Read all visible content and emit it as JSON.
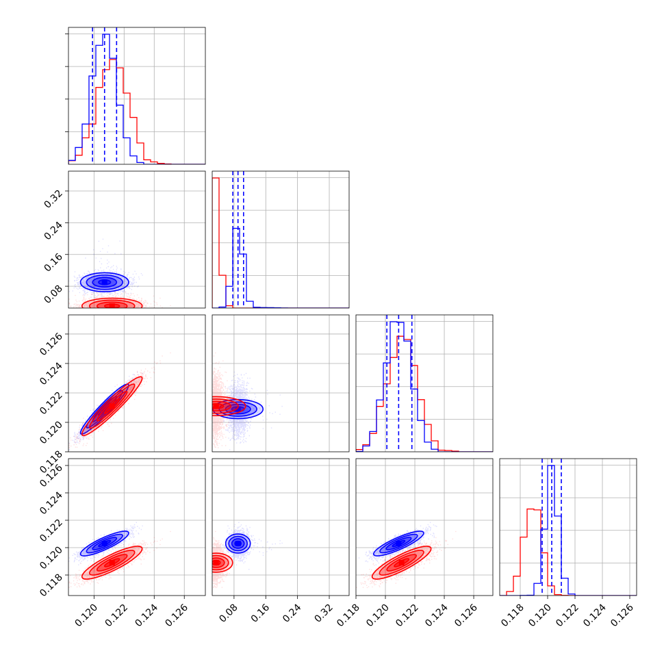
{
  "colors": {
    "series_a": "#0000ff",
    "series_b": "#ff0000",
    "grid": "#b0b0b0",
    "frame": "#000000"
  },
  "chart_data": {
    "type": "corner",
    "grid": true,
    "parameters": [
      {
        "range": [
          0.1183,
          0.1274
        ],
        "ticks": [
          "0.120",
          "0.122",
          "0.124",
          "0.126"
        ],
        "tick_values": [
          0.12,
          0.122,
          0.124,
          0.126
        ]
      },
      {
        "range": [
          0.025,
          0.37
        ],
        "ticks": [
          "0.08",
          "0.16",
          "0.24",
          "0.32"
        ],
        "tick_values": [
          0.08,
          0.16,
          0.24,
          0.32
        ]
      },
      {
        "range": [
          0.118,
          0.1273
        ],
        "ticks": [
          "0.118",
          "0.120",
          "0.122",
          "0.124",
          "0.126"
        ],
        "tick_values": [
          0.118,
          0.12,
          0.122,
          0.124,
          0.126
        ]
      },
      {
        "range": [
          0.1165,
          0.1265
        ],
        "ticks": [
          "0.118",
          "0.120",
          "0.122",
          "0.124",
          "0.126"
        ],
        "tick_values": [
          0.118,
          0.12,
          0.122,
          0.124,
          0.126
        ]
      }
    ],
    "series": [
      {
        "color": "#0000ff",
        "means": [
          0.1207,
          0.09,
          0.1209,
          0.1203
        ],
        "stds": [
          0.0008,
          0.012,
          0.00085,
          0.00045
        ],
        "quantiles": [
          [
            0.1199,
            0.1207,
            0.1215
          ],
          [
            0.077,
            0.09,
            0.104
          ],
          [
            0.1201,
            0.1209,
            0.1218
          ],
          [
            0.1196,
            0.1203,
            0.121
          ]
        ],
        "correlations": {
          "0-2": 0.95,
          "0-3": 0.85,
          "2-3": 0.85,
          "1-2": 0.0,
          "1-3": 0.0,
          "0-1": 0.0
        }
      },
      {
        "color": "#ff0000",
        "means": [
          0.1212,
          0.04,
          0.1211,
          0.1189
        ],
        "stds": [
          0.001,
          0.01,
          0.001,
          0.0006
        ],
        "quantiles": [],
        "correlations": {
          "0-2": 0.95,
          "0-3": 0.85,
          "2-3": 0.85,
          "1-2": 0.0,
          "1-3": 0.0,
          "0-1": 0.0
        }
      }
    ]
  }
}
